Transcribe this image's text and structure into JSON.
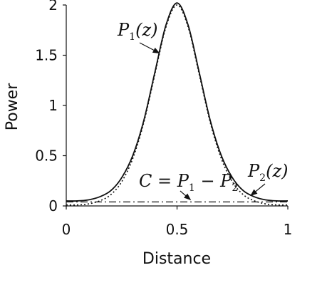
{
  "chart_data": {
    "type": "line",
    "title": "",
    "xlabel": "Distance",
    "ylabel": "Power",
    "xlim": [
      0,
      1
    ],
    "ylim": [
      0,
      2
    ],
    "xticks": [
      0,
      0.5,
      1
    ],
    "xtick_labels": [
      "0",
      "0.5",
      "1"
    ],
    "yticks": [
      0,
      0.5,
      1,
      1.5,
      2
    ],
    "ytick_labels": [
      "0",
      "0.5",
      "1",
      "1.5",
      "2"
    ],
    "grid": false,
    "legend": "none",
    "series": [
      {
        "style": "solid",
        "x": [
          0,
          0.05,
          0.1,
          0.15,
          0.2,
          0.25,
          0.3,
          0.35,
          0.4,
          0.45,
          0.5,
          0.55,
          0.6,
          0.65,
          0.7,
          0.75,
          0.8,
          0.85,
          0.9,
          0.95,
          1
        ],
        "values": [
          0.05,
          0.05,
          0.06,
          0.09,
          0.15,
          0.28,
          0.5,
          0.85,
          1.33,
          1.8,
          2.02,
          1.8,
          1.33,
          0.85,
          0.5,
          0.28,
          0.15,
          0.09,
          0.06,
          0.05,
          0.05
        ]
      },
      {
        "style": "dotted",
        "x": [
          0,
          0.05,
          0.1,
          0.15,
          0.2,
          0.25,
          0.3,
          0.35,
          0.4,
          0.45,
          0.5,
          0.55,
          0.6,
          0.65,
          0.7,
          0.75,
          0.8,
          0.85,
          0.9,
          0.95,
          1
        ],
        "values": [
          0.01,
          0.01,
          0.02,
          0.05,
          0.11,
          0.24,
          0.47,
          0.83,
          1.31,
          1.78,
          2.0,
          1.78,
          1.31,
          0.83,
          0.47,
          0.24,
          0.11,
          0.05,
          0.02,
          0.01,
          0.01
        ]
      },
      {
        "style": "dashdot",
        "x": [
          0,
          1
        ],
        "values": [
          0.04,
          0.04
        ]
      }
    ],
    "annotations": [
      {
        "main": "P",
        "sub": "1",
        "arg": "(z)",
        "arrow_to": [
          0.43,
          1.5
        ]
      },
      {
        "main": "P",
        "sub": "2",
        "arg": "(z)",
        "arrow_to": [
          0.82,
          0.09
        ]
      },
      {
        "text": "C = P",
        "sub1": "1",
        "minus": " − P",
        "sub2": "2",
        "arrow_to": [
          0.58,
          0.04
        ]
      }
    ]
  }
}
